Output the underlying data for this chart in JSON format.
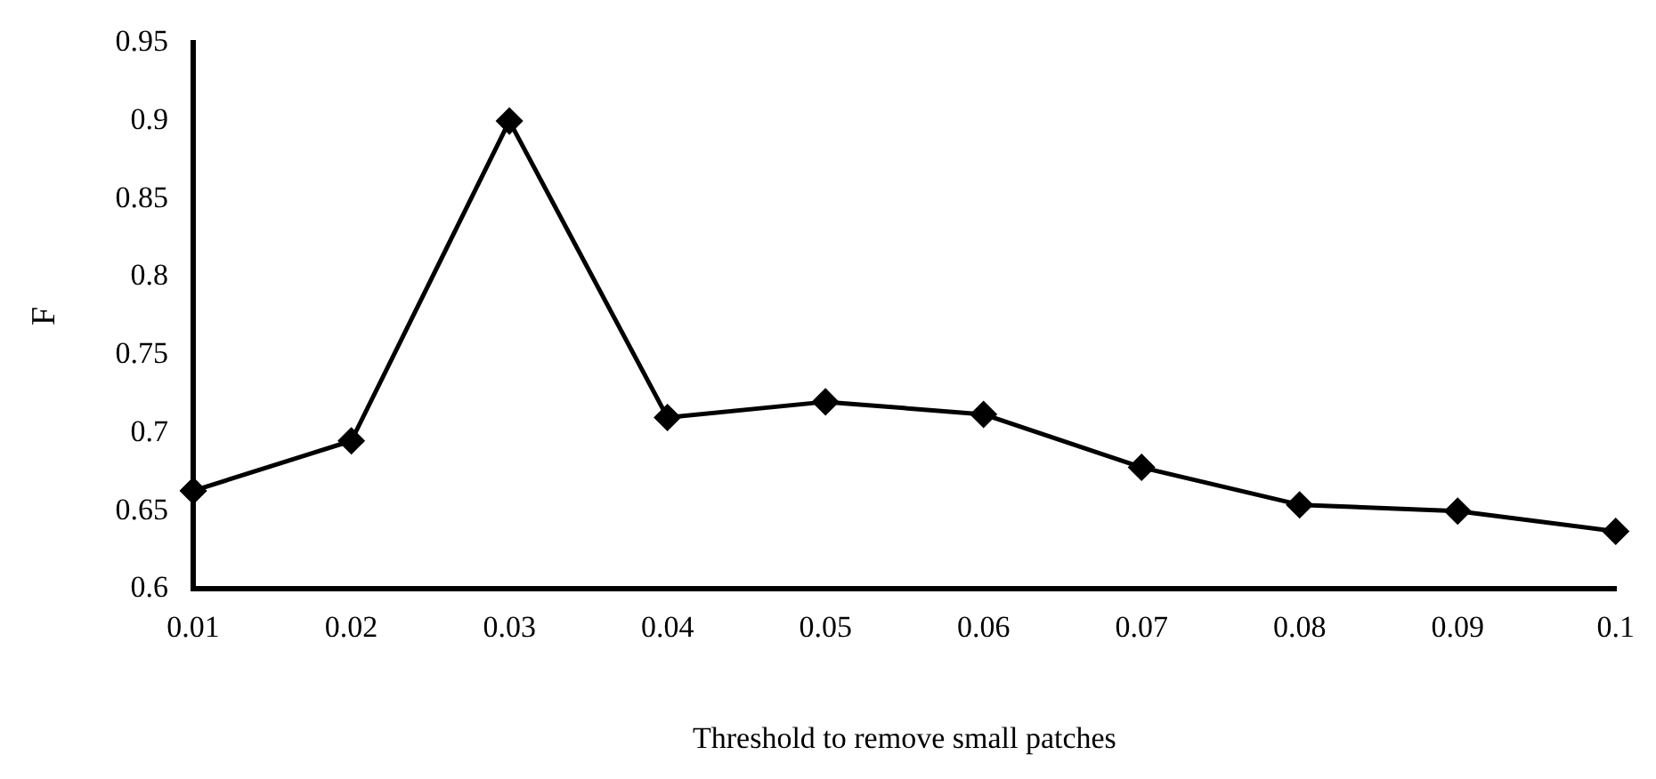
{
  "chart_data": {
    "type": "line",
    "xlabel": "Threshold to remove small patches",
    "ylabel": "F",
    "categories": [
      "0.01",
      "0.02",
      "0.03",
      "0.04",
      "0.05",
      "0.06",
      "0.07",
      "0.08",
      "0.09",
      "0.1"
    ],
    "series": [
      {
        "color": "#000000",
        "values": [
          0.663,
          0.695,
          0.9,
          0.71,
          0.72,
          0.712,
          0.678,
          0.654,
          0.65,
          0.637
        ]
      }
    ],
    "ylim": [
      0.6,
      0.95
    ],
    "yticks": [
      0.6,
      0.65,
      0.7,
      0.75,
      0.8,
      0.85,
      0.9,
      0.95
    ],
    "grid": false,
    "legend": false,
    "marker": "diamond",
    "line_style": "solid"
  }
}
